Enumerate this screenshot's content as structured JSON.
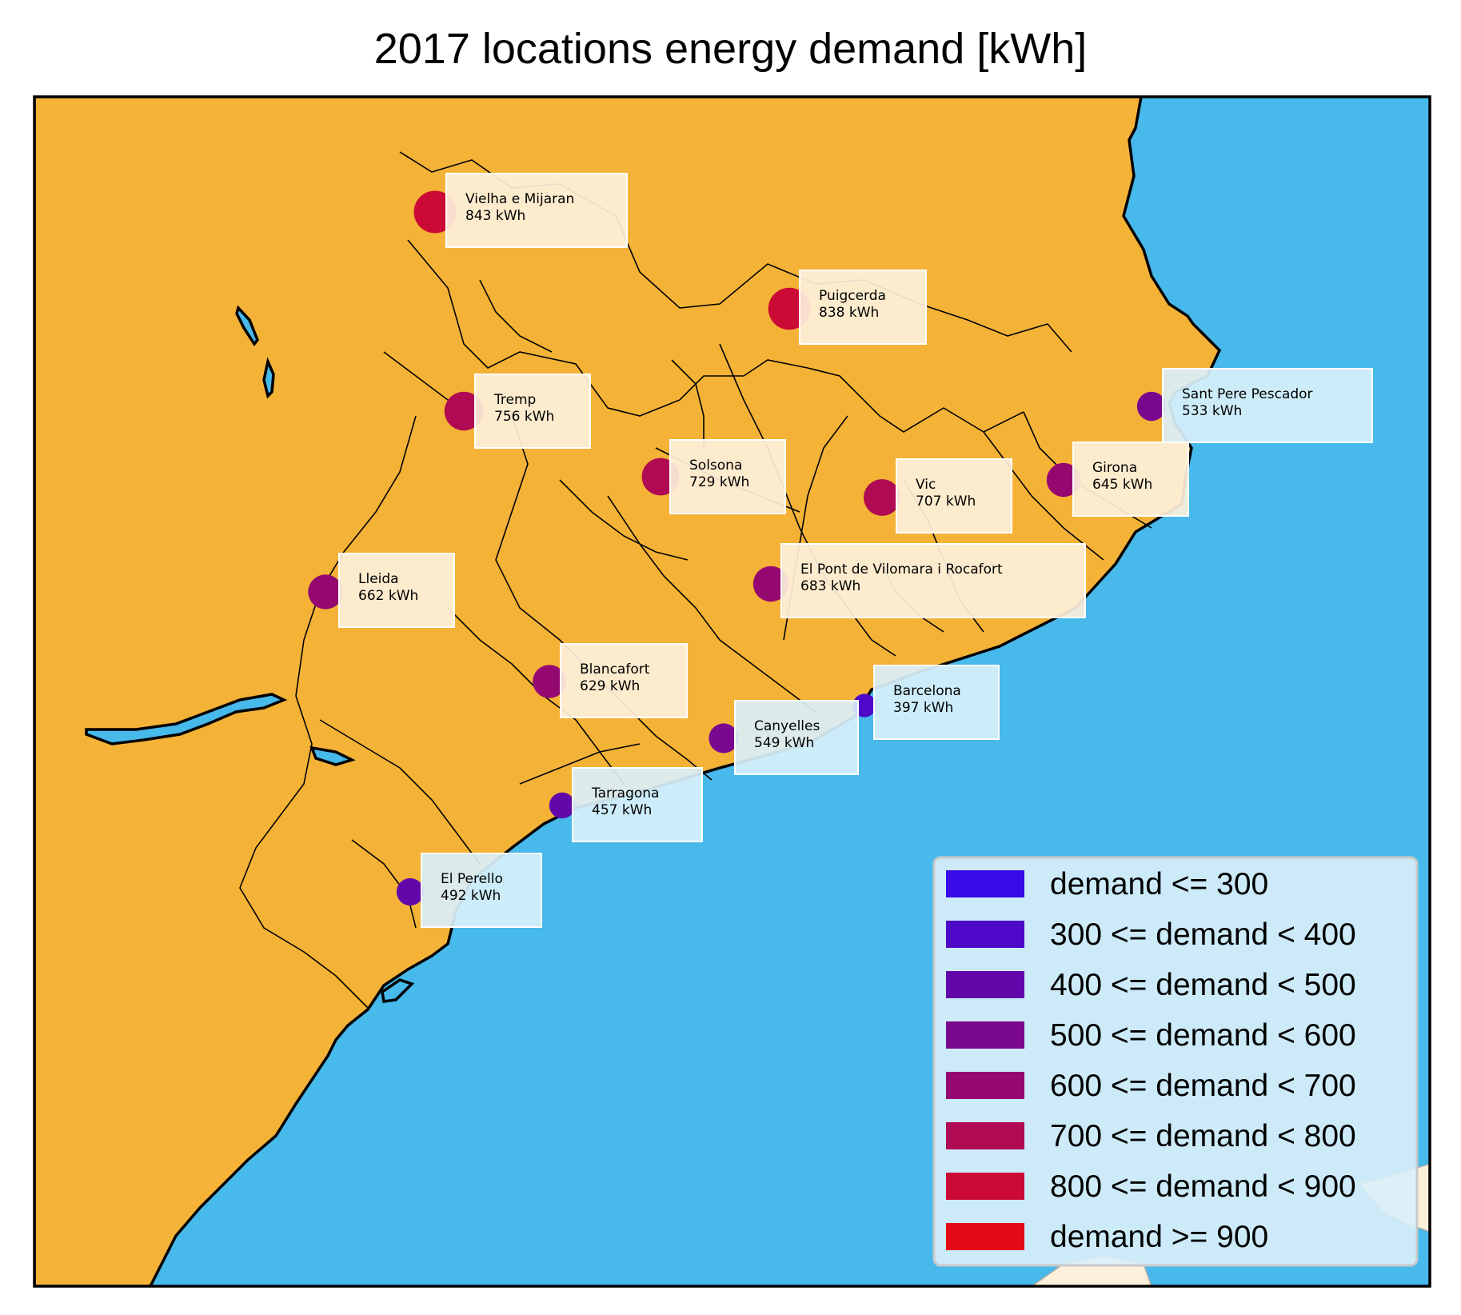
{
  "title": "2017 locations energy demand [kWh]",
  "colors": {
    "land": "#f4b337",
    "sea": "#47b9eb",
    "label_box_land": "#fdf0db",
    "label_box_sea": "#d9f0fa",
    "legend_bg": "#daf0f9"
  },
  "locations": [
    {
      "name": "Vielha e Mijaran",
      "value_text": "843 kWh",
      "demand": 843
    },
    {
      "name": "Puigcerda",
      "value_text": "838 kWh",
      "demand": 838
    },
    {
      "name": "Tremp",
      "value_text": "756 kWh",
      "demand": 756
    },
    {
      "name": "Sant Pere Pescador",
      "value_text": "533 kWh",
      "demand": 533
    },
    {
      "name": "Solsona",
      "value_text": "729 kWh",
      "demand": 729
    },
    {
      "name": "Vic",
      "value_text": "707 kWh",
      "demand": 707
    },
    {
      "name": "Girona",
      "value_text": "645 kWh",
      "demand": 645
    },
    {
      "name": "Lleida",
      "value_text": "662 kWh",
      "demand": 662
    },
    {
      "name": "El Pont de Vilomara i Rocafort",
      "value_text": "683 kWh",
      "demand": 683
    },
    {
      "name": "Blancafort",
      "value_text": "629 kWh",
      "demand": 629
    },
    {
      "name": "Barcelona",
      "value_text": "397 kWh",
      "demand": 397
    },
    {
      "name": "Canyelles",
      "value_text": "549 kWh",
      "demand": 549
    },
    {
      "name": "Tarragona",
      "value_text": "457 kWh",
      "demand": 457
    },
    {
      "name": "El Perello",
      "value_text": "492 kWh",
      "demand": 492
    }
  ],
  "legend": [
    {
      "label": "demand <= 300",
      "color": "#3a0ae6"
    },
    {
      "label": "300 <= demand < 400",
      "color": "#4d08c8"
    },
    {
      "label": "400 <= demand < 500",
      "color": "#6208ab"
    },
    {
      "label": "500 <= demand < 600",
      "color": "#7a088f"
    },
    {
      "label": "600 <= demand < 700",
      "color": "#950870"
    },
    {
      "label": "700 <= demand < 800",
      "color": "#b00a52"
    },
    {
      "label": "800 <= demand < 900",
      "color": "#cb0b36"
    },
    {
      "label": "demand >= 900",
      "color": "#e30a1a"
    }
  ]
}
